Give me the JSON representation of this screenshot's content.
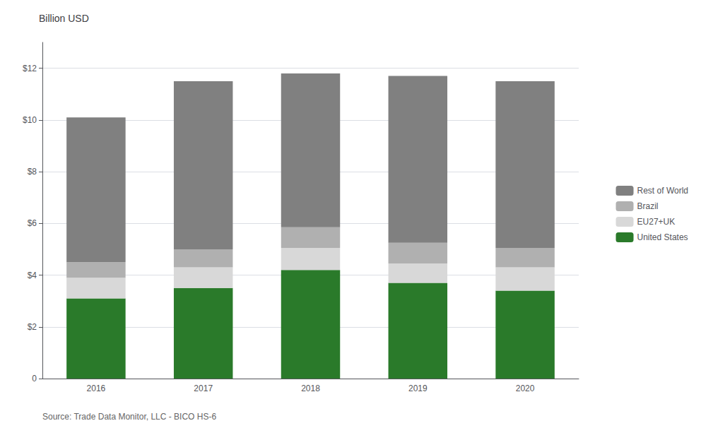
{
  "chart_data": {
    "type": "bar",
    "stacked": true,
    "title": "Billion USD",
    "categories": [
      "2016",
      "2017",
      "2018",
      "2019",
      "2020"
    ],
    "series": [
      {
        "name": "United States",
        "color": "#2a7a2a",
        "values": [
          3.1,
          3.5,
          4.2,
          3.7,
          3.4
        ]
      },
      {
        "name": "EU27+UK",
        "color": "#d8d8d8",
        "values": [
          0.8,
          0.8,
          0.85,
          0.75,
          0.9
        ]
      },
      {
        "name": "Brazil",
        "color": "#b0b0b0",
        "values": [
          0.6,
          0.7,
          0.8,
          0.8,
          0.75
        ]
      },
      {
        "name": "Rest of World",
        "color": "#808080",
        "values": [
          5.6,
          6.5,
          5.95,
          6.45,
          6.45
        ]
      }
    ],
    "ylim": [
      0,
      13
    ],
    "yticks": [
      0,
      {
        "value": 2,
        "label": "$2"
      },
      {
        "value": 4,
        "label": "$4"
      },
      {
        "value": 6,
        "label": "$6"
      },
      {
        "value": 8,
        "label": "$8"
      },
      {
        "value": 10,
        "label": "$10"
      },
      {
        "value": 12,
        "label": "$12"
      }
    ],
    "grid": true,
    "legend": "right",
    "annotations": [
      "Source: Trade Data Monitor, LLC - BICO HS-6"
    ]
  }
}
